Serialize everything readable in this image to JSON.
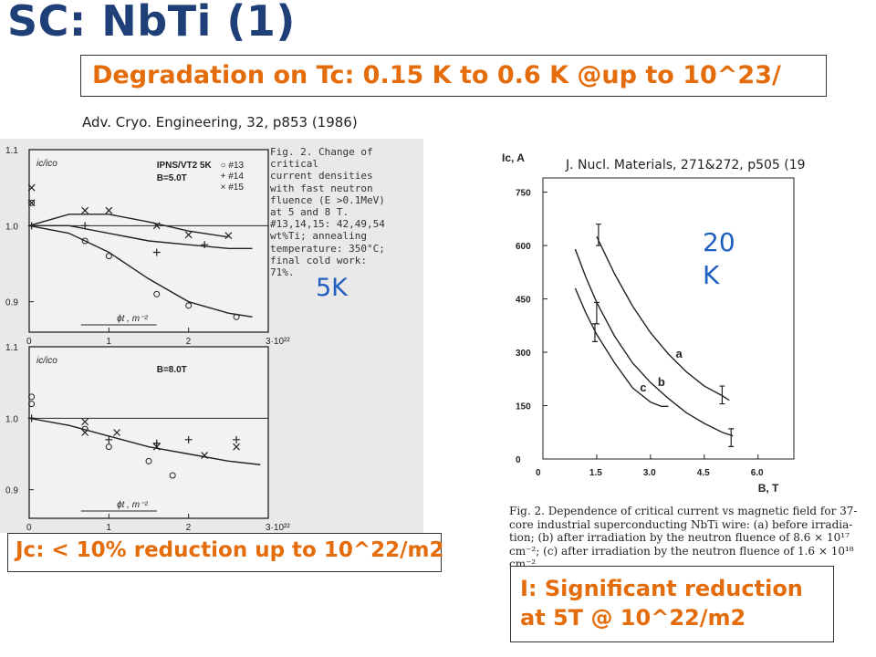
{
  "slide": {
    "title": "SC: NbTi (1)",
    "subtitle": "Degradation on Tc: 0.15 K to 0.6 K @up to 10^23/",
    "ref_left": "Adv. Cryo. Engineering, 32, p853 (1986)",
    "ref_right": "J. Nucl. Materials, 271&272, p505 (19",
    "label_5k": "5K",
    "label_20k_line1": "20",
    "label_20k_line2": "K",
    "box_jc": "Jc: < 10% reduction up to 10^22/m2",
    "box_i_line1": "I: Significant reduction",
    "box_i_line2": "at 5T @ 10^22/m2"
  },
  "left_figure": {
    "caption_lines": [
      "Fig. 2. Change of critical",
      "current densities",
      "with fast neutron",
      "fluence (E >0.1MeV)",
      "at 5 and 8 T.",
      "#13,14,15: 42,49,54",
      "wt%Ti; annealing",
      "temperature: 350°C;",
      "final cold work:",
      "71%."
    ]
  },
  "right_figure": {
    "caption_lines": [
      "Fig. 2. Dependence of critical current vs magnetic field for 37-",
      "core industrial superconducting NbTi wire: (a) before irradia-",
      "tion; (b) after irradiation by the neutron fluence of 8.6 × 10¹⁷",
      "cm⁻²; (c) after irradiation by the neutron fluence of 1.6 × 10¹⁸",
      "cm⁻²."
    ]
  },
  "chart_data": [
    {
      "type": "scatter",
      "panel": "top",
      "ylabel": "ic/ico",
      "xlabel": "ϕt , m⁻²",
      "annotation": "IPNS/VT2   5K",
      "field_label": "B=5.0T",
      "xlim": [
        0,
        3
      ],
      "ylim": [
        0.86,
        1.1
      ],
      "x_ticks": [
        "0",
        "1",
        "2",
        "3·10²²"
      ],
      "y_ticks": [
        "1.1",
        "1.0",
        "0.9"
      ],
      "legend": [
        "○ #13",
        "+ #14",
        "× #15"
      ],
      "series": [
        {
          "name": "#13",
          "marker": "circle",
          "x": [
            0.03,
            0.7,
            1.0,
            1.6,
            2.0,
            2.6
          ],
          "y": [
            1.03,
            0.98,
            0.96,
            0.91,
            0.895,
            0.88
          ],
          "curve_x": [
            0,
            0.5,
            1.0,
            1.5,
            2.0,
            2.5,
            2.8
          ],
          "curve_y": [
            1.0,
            0.99,
            0.965,
            0.93,
            0.9,
            0.885,
            0.88
          ]
        },
        {
          "name": "#14",
          "marker": "plus",
          "x": [
            0.03,
            0.7,
            1.6,
            2.2
          ],
          "y": [
            1.0,
            1.0,
            0.965,
            0.975
          ],
          "curve_x": [
            0,
            0.5,
            1.0,
            1.5,
            2.0,
            2.5,
            2.8
          ],
          "curve_y": [
            1.0,
            1.0,
            0.99,
            0.98,
            0.975,
            0.97,
            0.97
          ]
        },
        {
          "name": "#15",
          "marker": "cross",
          "x": [
            0.03,
            0.03,
            0.7,
            1.0,
            1.6,
            2.0,
            2.5
          ],
          "y": [
            1.05,
            1.03,
            1.02,
            1.02,
            1.0,
            0.988,
            0.987
          ],
          "curve_x": [
            0,
            0.5,
            1.0,
            1.5,
            2.0,
            2.5
          ],
          "curve_y": [
            1.0,
            1.015,
            1.015,
            1.005,
            0.993,
            0.985
          ]
        }
      ]
    },
    {
      "type": "scatter",
      "panel": "bottom",
      "ylabel": "ic/ico",
      "xlabel": "ϕt , m⁻²",
      "field_label": "B=8.0T",
      "xlim": [
        0,
        3
      ],
      "ylim": [
        0.86,
        1.1
      ],
      "x_ticks": [
        "0",
        "1",
        "2",
        "3·10²²"
      ],
      "y_ticks": [
        "1.1",
        "1.0",
        "0.9"
      ],
      "series": [
        {
          "name": "#13",
          "marker": "circle",
          "x": [
            0.03,
            0.03,
            0.7,
            1.0,
            1.5,
            1.8
          ],
          "y": [
            1.03,
            1.02,
            0.985,
            0.96,
            0.94,
            0.92
          ],
          "curve_x": [
            0,
            0.5,
            1.0,
            1.5,
            2.0,
            2.5,
            2.9
          ],
          "curve_y": [
            1.0,
            0.99,
            0.975,
            0.96,
            0.95,
            0.94,
            0.935
          ]
        },
        {
          "name": "#14",
          "marker": "plus",
          "x": [
            0.03,
            1.0,
            1.6,
            2.0,
            2.6
          ],
          "y": [
            1.0,
            0.97,
            0.965,
            0.97,
            0.97
          ],
          "curve_x": [],
          "curve_y": []
        },
        {
          "name": "#15",
          "marker": "cross",
          "x": [
            0.7,
            0.7,
            1.1,
            1.6,
            2.2,
            2.6
          ],
          "y": [
            0.995,
            0.98,
            0.98,
            0.96,
            0.948,
            0.96
          ],
          "curve_x": [],
          "curve_y": []
        }
      ]
    },
    {
      "type": "line",
      "xlabel": "B, T",
      "ylabel": "Ic, A",
      "xlim": [
        0,
        7.0
      ],
      "ylim": [
        0,
        790
      ],
      "x_ticks": [
        "0",
        "1.5",
        "3.0",
        "4.5",
        "6.0"
      ],
      "y_ticks": [
        "0",
        "150",
        "300",
        "450",
        "600",
        "750"
      ],
      "series": [
        {
          "name": "a",
          "x": [
            1.5,
            2.0,
            2.5,
            3.0,
            3.5,
            4.0,
            4.5,
            5.0,
            5.2
          ],
          "y": [
            625,
            520,
            430,
            355,
            295,
            245,
            205,
            178,
            165
          ]
        },
        {
          "name": "b",
          "x": [
            0.9,
            1.2,
            1.5,
            2.0,
            2.5,
            3.0,
            3.5,
            4.0,
            4.5,
            5.0,
            5.3
          ],
          "y": [
            590,
            510,
            440,
            345,
            270,
            215,
            170,
            130,
            100,
            75,
            65
          ]
        },
        {
          "name": "c",
          "x": [
            0.9,
            1.2,
            1.5,
            2.0,
            2.5,
            3.0,
            3.3,
            3.5
          ],
          "y": [
            480,
            410,
            350,
            270,
            200,
            160,
            148,
            148
          ]
        }
      ],
      "error_bars": [
        {
          "x": 1.55,
          "y": 630,
          "err": 30
        },
        {
          "x": 1.5,
          "y": 410,
          "err": 30
        },
        {
          "x": 1.45,
          "y": 355,
          "err": 25
        },
        {
          "x": 5.0,
          "y": 180,
          "err": 25
        },
        {
          "x": 5.25,
          "y": 60,
          "err": 25
        }
      ]
    }
  ]
}
